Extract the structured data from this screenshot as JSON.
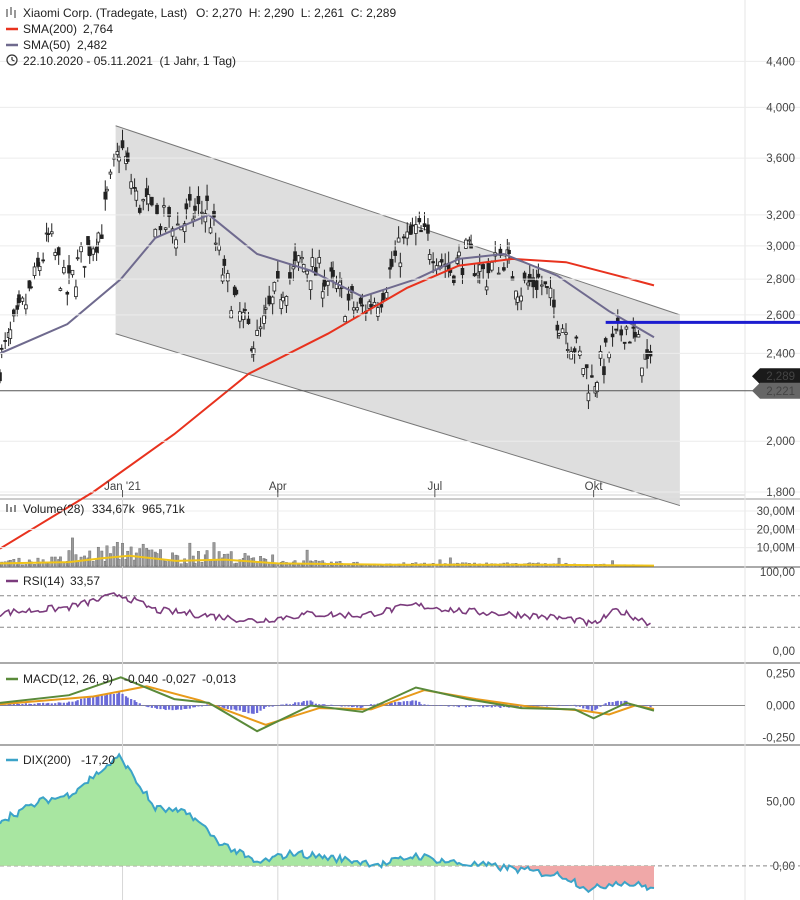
{
  "header": {
    "instrument_label": "Xiaomi Corp. (Tradegate, Last)",
    "ohlc": "O: 2,270  H: 2,290  L: 2,261  C: 2,289",
    "sma200_label": "SMA(200)",
    "sma200_value": "2,764",
    "sma50_label": "SMA(50)",
    "sma50_value": "2,482",
    "range_label": "22.10.2020 - 05.11.2021  (1 Jahr, 1 Tag)"
  },
  "chart_data": [
    {
      "type": "candlestick",
      "title": "Xiaomi Corp. (Tradegate, Last)",
      "y_scale": "log",
      "ylim": [
        1.8,
        4.6
      ],
      "y_ticks": [
        "4,400",
        "4,000",
        "3,600",
        "3,200",
        "3,000",
        "2,800",
        "2,600",
        "2,400",
        "2,000",
        "1,800"
      ],
      "x_ticks": [
        "Jan '21",
        "Apr",
        "Jul",
        "Okt"
      ],
      "last_price_tag": "2,289",
      "level_tag": "2,221",
      "close_series": [
        [
          "2020-10-22",
          2.35
        ],
        [
          "2020-11-01",
          2.55
        ],
        [
          "2020-11-10",
          2.75
        ],
        [
          "2020-11-20",
          3.05
        ],
        [
          "2020-11-30",
          2.72
        ],
        [
          "2020-12-10",
          2.95
        ],
        [
          "2020-12-20",
          3.1
        ],
        [
          "2020-12-31",
          3.7
        ],
        [
          "2021-01-10",
          3.3
        ],
        [
          "2021-01-20",
          3.2
        ],
        [
          "2021-01-31",
          3.1
        ],
        [
          "2021-02-10",
          3.2
        ],
        [
          "2021-02-20",
          3.25
        ],
        [
          "2021-02-28",
          2.85
        ],
        [
          "2021-03-10",
          2.6
        ],
        [
          "2021-03-20",
          2.45
        ],
        [
          "2021-03-31",
          2.7
        ],
        [
          "2021-04-15",
          2.9
        ],
        [
          "2021-04-30",
          2.8
        ],
        [
          "2021-05-10",
          2.68
        ],
        [
          "2021-05-20",
          2.62
        ],
        [
          "2021-05-31",
          2.72
        ],
        [
          "2021-06-10",
          2.95
        ],
        [
          "2021-06-20",
          3.1
        ],
        [
          "2021-06-30",
          3.0
        ],
        [
          "2021-07-10",
          2.85
        ],
        [
          "2021-07-20",
          2.95
        ],
        [
          "2021-07-31",
          2.82
        ],
        [
          "2021-08-10",
          2.95
        ],
        [
          "2021-08-20",
          2.75
        ],
        [
          "2021-08-31",
          2.8
        ],
        [
          "2021-09-10",
          2.6
        ],
        [
          "2021-09-20",
          2.45
        ],
        [
          "2021-09-30",
          2.25
        ],
        [
          "2021-10-10",
          2.4
        ],
        [
          "2021-10-20",
          2.55
        ],
        [
          "2021-10-28",
          2.42
        ],
        [
          "2021-11-05",
          2.289
        ]
      ],
      "sma200": [
        [
          "2020-10-22",
          1.6
        ],
        [
          "2020-12-15",
          1.8
        ],
        [
          "2021-01-31",
          2.03
        ],
        [
          "2021-03-15",
          2.3
        ],
        [
          "2021-04-30",
          2.5
        ],
        [
          "2021-06-15",
          2.75
        ],
        [
          "2021-07-15",
          2.88
        ],
        [
          "2021-08-15",
          2.92
        ],
        [
          "2021-09-15",
          2.9
        ],
        [
          "2021-10-15",
          2.82
        ],
        [
          "2021-11-05",
          2.764
        ]
      ],
      "sma50": [
        [
          "2020-10-22",
          2.4
        ],
        [
          "2020-11-30",
          2.55
        ],
        [
          "2020-12-31",
          2.8
        ],
        [
          "2021-01-20",
          3.05
        ],
        [
          "2021-02-20",
          3.2
        ],
        [
          "2021-03-20",
          2.95
        ],
        [
          "2021-04-20",
          2.85
        ],
        [
          "2021-05-20",
          2.7
        ],
        [
          "2021-06-20",
          2.8
        ],
        [
          "2021-07-15",
          2.92
        ],
        [
          "2021-08-10",
          2.95
        ],
        [
          "2021-09-10",
          2.82
        ],
        [
          "2021-10-10",
          2.62
        ],
        [
          "2021-11-05",
          2.482
        ]
      ],
      "channel_upper": [
        [
          "2020-12-28",
          3.85
        ],
        [
          "2021-11-20",
          2.6
        ]
      ],
      "channel_lower": [
        [
          "2020-12-28",
          2.5
        ],
        [
          "2021-11-20",
          1.75
        ]
      ],
      "resistance_level": 2.56,
      "colors": {
        "sma200": "#e8321e",
        "sma50": "#6f6a8e",
        "channel_fill": "#dcdcdc",
        "resistance": "#1c1ccf"
      }
    },
    {
      "type": "bar",
      "name": "Volume(28)",
      "label": "Volume(28)",
      "value": "334,67k",
      "avg_value": "965,71k",
      "y_ticks": [
        "30,00M",
        "20,00M",
        "10,00M"
      ],
      "ylim": [
        0,
        36
      ],
      "unit": "M",
      "approx_profile": [
        [
          "2020-10-22",
          2
        ],
        [
          "2020-12-01",
          3
        ],
        [
          "2020-12-20",
          6
        ],
        [
          "2021-01-05",
          8
        ],
        [
          "2021-02-01",
          4
        ],
        [
          "2021-03-01",
          5
        ],
        [
          "2021-04-01",
          2
        ],
        [
          "2021-06-01",
          1
        ],
        [
          "2021-09-01",
          1
        ],
        [
          "2021-11-05",
          0.3
        ]
      ],
      "colors": {
        "avg": "#f0c419",
        "bars": "#888888"
      }
    },
    {
      "type": "line",
      "name": "RSI(14)",
      "label": "RSI(14)",
      "value": "33,57",
      "y_ticks": [
        "100,00",
        "0,00"
      ],
      "ylim": [
        0,
        100
      ],
      "levels": [
        70,
        30
      ],
      "values": [
        [
          "2020-10-22",
          48
        ],
        [
          "2020-12-01",
          55
        ],
        [
          "2020-12-31",
          72
        ],
        [
          "2021-01-20",
          52
        ],
        [
          "2021-02-20",
          45
        ],
        [
          "2021-03-20",
          38
        ],
        [
          "2021-04-20",
          47
        ],
        [
          "2021-05-20",
          45
        ],
        [
          "2021-06-20",
          58
        ],
        [
          "2021-07-20",
          50
        ],
        [
          "2021-08-20",
          46
        ],
        [
          "2021-09-20",
          40
        ],
        [
          "2021-10-01",
          33
        ],
        [
          "2021-10-15",
          52
        ],
        [
          "2021-11-05",
          33.57
        ]
      ],
      "colors": {
        "line": "#7b3b7d"
      }
    },
    {
      "type": "line",
      "name": "MACD(12, 26, 9)",
      "label": "MACD(12, 26, 9)",
      "values_text": [
        "-0,040",
        "-0,027",
        "-0,013"
      ],
      "y_ticks": [
        "0,250",
        "0,000",
        "-0,250"
      ],
      "ylim": [
        -0.3,
        0.3
      ],
      "macd": [
        [
          "2020-10-22",
          0.02
        ],
        [
          "2020-12-01",
          0.08
        ],
        [
          "2020-12-31",
          0.22
        ],
        [
          "2021-01-31",
          0.05
        ],
        [
          "2021-02-20",
          0.02
        ],
        [
          "2021-03-20",
          -0.2
        ],
        [
          "2021-04-20",
          0.0
        ],
        [
          "2021-05-20",
          -0.05
        ],
        [
          "2021-06-20",
          0.14
        ],
        [
          "2021-07-20",
          0.05
        ],
        [
          "2021-08-20",
          -0.02
        ],
        [
          "2021-09-20",
          -0.03
        ],
        [
          "2021-10-01",
          -0.1
        ],
        [
          "2021-10-20",
          0.02
        ],
        [
          "2021-11-05",
          -0.04
        ]
      ],
      "signal": [
        [
          "2020-10-22",
          0.01
        ],
        [
          "2020-12-15",
          0.07
        ],
        [
          "2021-01-15",
          0.15
        ],
        [
          "2021-02-15",
          0.04
        ],
        [
          "2021-03-25",
          -0.15
        ],
        [
          "2021-04-25",
          -0.02
        ],
        [
          "2021-05-25",
          -0.03
        ],
        [
          "2021-06-25",
          0.12
        ],
        [
          "2021-07-25",
          0.05
        ],
        [
          "2021-08-25",
          -0.01
        ],
        [
          "2021-09-25",
          -0.04
        ],
        [
          "2021-10-10",
          -0.07
        ],
        [
          "2021-10-25",
          0.0
        ],
        [
          "2021-11-05",
          -0.027
        ]
      ],
      "colors": {
        "macd": "#5a8a3a",
        "signal": "#e89a1a",
        "hist": "#6a6ad8"
      }
    },
    {
      "type": "area",
      "name": "DIX(200)",
      "label": "DIX(200)",
      "value": "-17,20",
      "y_ticks": [
        "50,00",
        "0,00"
      ],
      "ylim": [
        -25,
        90
      ],
      "values": [
        [
          "2020-10-22",
          35
        ],
        [
          "2020-11-15",
          50
        ],
        [
          "2020-12-01",
          55
        ],
        [
          "2020-12-31",
          85
        ],
        [
          "2021-01-20",
          45
        ],
        [
          "2021-02-10",
          40
        ],
        [
          "2021-02-25",
          20
        ],
        [
          "2021-03-20",
          2
        ],
        [
          "2021-04-10",
          10
        ],
        [
          "2021-05-10",
          5
        ],
        [
          "2021-06-01",
          1
        ],
        [
          "2021-06-20",
          8
        ],
        [
          "2021-07-15",
          2
        ],
        [
          "2021-08-01",
          0
        ],
        [
          "2021-08-20",
          -3
        ],
        [
          "2021-09-15",
          -8
        ],
        [
          "2021-09-30",
          -19
        ],
        [
          "2021-10-15",
          -12
        ],
        [
          "2021-11-05",
          -17.2
        ]
      ],
      "colors": {
        "line": "#3ba3c8",
        "positive_fill": "#a8e6a1",
        "negative_fill": "#f0a8a8"
      }
    }
  ]
}
